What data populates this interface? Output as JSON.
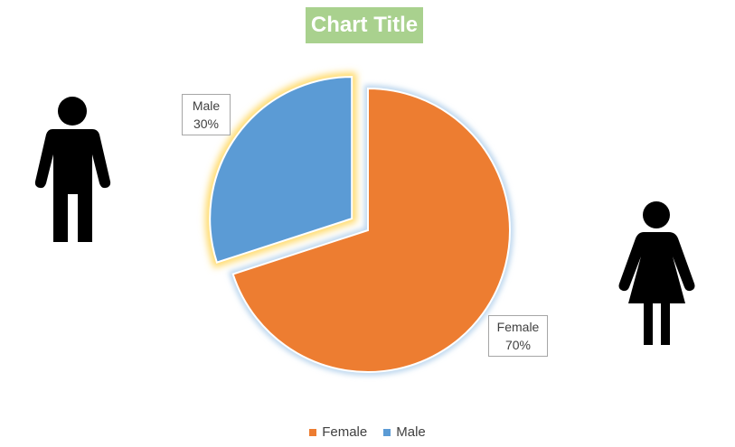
{
  "chart_data": {
    "type": "pie",
    "title": "Chart Title",
    "categories": [
      "Female",
      "Male"
    ],
    "values": [
      70,
      30
    ],
    "data_labels": [
      {
        "name": "Female",
        "percent": "70%"
      },
      {
        "name": "Male",
        "percent": "30%"
      }
    ],
    "colors": {
      "Female": "#ed7d31",
      "Male": "#5b9bd5"
    },
    "legend_placement": "bottom",
    "exploded": "Male"
  },
  "icons": {
    "left": "male-person-icon",
    "right": "female-person-icon"
  }
}
